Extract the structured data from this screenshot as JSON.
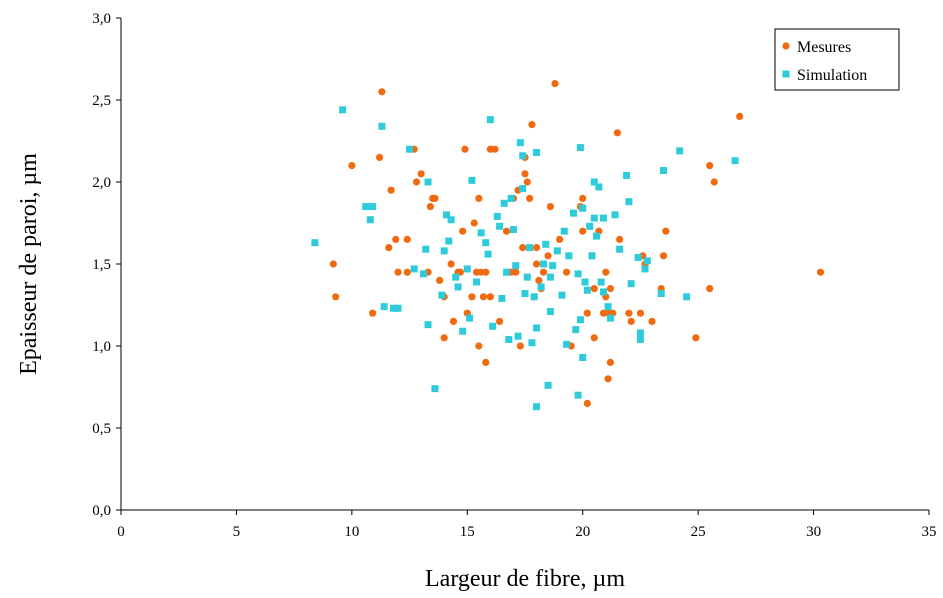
{
  "chart_data": {
    "type": "scatter",
    "title": "",
    "xlabel": "Largeur de fibre, µm",
    "ylabel": "Epaisseur de paroi, µm",
    "xlim": [
      0,
      35
    ],
    "ylim": [
      0,
      3
    ],
    "x_ticks": [
      0,
      5,
      10,
      15,
      20,
      25,
      30,
      35
    ],
    "x_tick_labels": [
      "0",
      "5",
      "10",
      "15",
      "20",
      "25",
      "30",
      "35"
    ],
    "y_ticks": [
      0,
      0.5,
      1,
      1.5,
      2,
      2.5,
      3
    ],
    "y_tick_labels": [
      "0,0",
      "0,5",
      "1,0",
      "1,5",
      "2,0",
      "2,5",
      "3,0"
    ],
    "grid": false,
    "legend_position": "top-right",
    "series": [
      {
        "name": "Mesures",
        "marker": "circle",
        "color": "#F26A10",
        "points": [
          [
            9.2,
            1.5
          ],
          [
            9.3,
            1.3
          ],
          [
            10.0,
            2.1
          ],
          [
            10.9,
            1.2
          ],
          [
            11.2,
            2.15
          ],
          [
            11.3,
            2.55
          ],
          [
            11.6,
            1.6
          ],
          [
            11.7,
            1.95
          ],
          [
            11.9,
            1.65
          ],
          [
            12.0,
            1.45
          ],
          [
            12.4,
            1.65
          ],
          [
            12.4,
            1.45
          ],
          [
            12.7,
            2.2
          ],
          [
            12.8,
            2.0
          ],
          [
            13.0,
            2.05
          ],
          [
            13.3,
            1.45
          ],
          [
            13.4,
            1.85
          ],
          [
            13.5,
            1.9
          ],
          [
            13.6,
            1.9
          ],
          [
            13.8,
            1.4
          ],
          [
            14.0,
            1.3
          ],
          [
            14.0,
            1.05
          ],
          [
            14.3,
            1.5
          ],
          [
            14.4,
            1.15
          ],
          [
            14.6,
            1.45
          ],
          [
            14.7,
            1.45
          ],
          [
            14.8,
            1.7
          ],
          [
            14.9,
            2.2
          ],
          [
            15.0,
            1.2
          ],
          [
            15.2,
            1.3
          ],
          [
            15.3,
            1.75
          ],
          [
            15.4,
            1.45
          ],
          [
            15.5,
            1.0
          ],
          [
            15.5,
            1.9
          ],
          [
            15.6,
            1.45
          ],
          [
            15.7,
            1.3
          ],
          [
            15.8,
            1.45
          ],
          [
            15.8,
            0.9
          ],
          [
            16.0,
            2.2
          ],
          [
            16.0,
            1.3
          ],
          [
            16.2,
            2.2
          ],
          [
            16.4,
            1.15
          ],
          [
            16.7,
            1.7
          ],
          [
            16.9,
            1.45
          ],
          [
            17.0,
            1.9
          ],
          [
            17.1,
            1.45
          ],
          [
            17.2,
            1.95
          ],
          [
            17.3,
            1.0
          ],
          [
            17.4,
            1.6
          ],
          [
            17.5,
            2.05
          ],
          [
            17.5,
            2.15
          ],
          [
            17.6,
            2.0
          ],
          [
            17.7,
            1.9
          ],
          [
            17.8,
            2.35
          ],
          [
            17.9,
            1.3
          ],
          [
            18.0,
            1.5
          ],
          [
            18.0,
            1.6
          ],
          [
            18.1,
            1.4
          ],
          [
            18.2,
            1.35
          ],
          [
            18.3,
            1.45
          ],
          [
            18.5,
            1.55
          ],
          [
            18.6,
            1.85
          ],
          [
            18.8,
            2.6
          ],
          [
            19.0,
            1.65
          ],
          [
            19.3,
            1.45
          ],
          [
            19.5,
            1.0
          ],
          [
            19.9,
            1.85
          ],
          [
            20.0,
            1.9
          ],
          [
            20.0,
            1.7
          ],
          [
            20.2,
            0.65
          ],
          [
            20.2,
            1.2
          ],
          [
            20.5,
            1.35
          ],
          [
            20.5,
            1.05
          ],
          [
            20.7,
            1.7
          ],
          [
            20.9,
            1.2
          ],
          [
            21.0,
            1.45
          ],
          [
            21.0,
            1.3
          ],
          [
            21.1,
            0.8
          ],
          [
            21.1,
            1.2
          ],
          [
            21.2,
            1.35
          ],
          [
            21.2,
            0.9
          ],
          [
            21.3,
            1.2
          ],
          [
            21.5,
            2.3
          ],
          [
            21.6,
            1.65
          ],
          [
            22.0,
            1.2
          ],
          [
            22.1,
            1.15
          ],
          [
            22.5,
            1.2
          ],
          [
            22.6,
            1.55
          ],
          [
            22.7,
            1.5
          ],
          [
            23.0,
            1.15
          ],
          [
            23.4,
            1.35
          ],
          [
            23.5,
            1.55
          ],
          [
            23.6,
            1.7
          ],
          [
            24.9,
            1.05
          ],
          [
            25.5,
            1.35
          ],
          [
            25.5,
            2.1
          ],
          [
            25.7,
            2.0
          ],
          [
            26.8,
            2.4
          ],
          [
            30.3,
            1.45
          ]
        ]
      },
      {
        "name": "Simulation",
        "marker": "square",
        "color": "#2ECCDA",
        "points": [
          [
            8.4,
            1.63
          ],
          [
            9.6,
            2.44
          ],
          [
            10.6,
            1.85
          ],
          [
            10.8,
            1.77
          ],
          [
            10.9,
            1.85
          ],
          [
            11.3,
            2.34
          ],
          [
            11.4,
            1.24
          ],
          [
            11.8,
            1.23
          ],
          [
            12.0,
            1.23
          ],
          [
            12.5,
            2.2
          ],
          [
            12.7,
            1.47
          ],
          [
            13.1,
            1.44
          ],
          [
            13.2,
            1.59
          ],
          [
            13.3,
            2.0
          ],
          [
            13.3,
            1.13
          ],
          [
            13.6,
            0.74
          ],
          [
            13.9,
            1.31
          ],
          [
            14.0,
            1.58
          ],
          [
            14.1,
            1.8
          ],
          [
            14.2,
            1.64
          ],
          [
            14.3,
            1.77
          ],
          [
            14.5,
            1.42
          ],
          [
            14.6,
            1.36
          ],
          [
            14.8,
            1.09
          ],
          [
            15.0,
            1.47
          ],
          [
            15.1,
            1.17
          ],
          [
            15.2,
            2.01
          ],
          [
            15.4,
            1.39
          ],
          [
            15.6,
            1.69
          ],
          [
            15.8,
            1.63
          ],
          [
            15.9,
            1.56
          ],
          [
            16.0,
            2.38
          ],
          [
            16.1,
            1.12
          ],
          [
            16.3,
            1.79
          ],
          [
            16.4,
            1.73
          ],
          [
            16.5,
            1.29
          ],
          [
            16.6,
            1.87
          ],
          [
            16.7,
            1.45
          ],
          [
            16.8,
            1.04
          ],
          [
            16.9,
            1.9
          ],
          [
            17.0,
            1.71
          ],
          [
            17.1,
            1.49
          ],
          [
            17.2,
            1.06
          ],
          [
            17.3,
            2.24
          ],
          [
            17.4,
            2.16
          ],
          [
            17.4,
            1.96
          ],
          [
            17.5,
            1.32
          ],
          [
            17.6,
            1.42
          ],
          [
            17.7,
            1.6
          ],
          [
            17.8,
            1.02
          ],
          [
            17.9,
            1.3
          ],
          [
            18.0,
            0.63
          ],
          [
            18.0,
            2.18
          ],
          [
            18.0,
            1.11
          ],
          [
            18.2,
            1.36
          ],
          [
            18.3,
            1.5
          ],
          [
            18.4,
            1.62
          ],
          [
            18.5,
            0.76
          ],
          [
            18.6,
            1.21
          ],
          [
            18.6,
            1.42
          ],
          [
            18.7,
            1.49
          ],
          [
            18.9,
            1.58
          ],
          [
            19.1,
            1.31
          ],
          [
            19.2,
            1.7
          ],
          [
            19.3,
            1.01
          ],
          [
            19.4,
            1.55
          ],
          [
            19.6,
            1.81
          ],
          [
            19.7,
            1.1
          ],
          [
            19.8,
            1.44
          ],
          [
            19.8,
            0.7
          ],
          [
            19.9,
            2.21
          ],
          [
            19.9,
            1.16
          ],
          [
            20.0,
            1.84
          ],
          [
            20.0,
            0.93
          ],
          [
            20.1,
            1.39
          ],
          [
            20.2,
            1.34
          ],
          [
            20.3,
            1.73
          ],
          [
            20.4,
            1.55
          ],
          [
            20.5,
            1.78
          ],
          [
            20.5,
            2.0
          ],
          [
            20.6,
            1.67
          ],
          [
            20.7,
            1.97
          ],
          [
            20.8,
            1.39
          ],
          [
            20.9,
            1.78
          ],
          [
            20.9,
            1.33
          ],
          [
            21.1,
            1.24
          ],
          [
            21.2,
            1.17
          ],
          [
            21.4,
            1.8
          ],
          [
            21.6,
            1.59
          ],
          [
            21.9,
            2.04
          ],
          [
            22.0,
            1.88
          ],
          [
            22.1,
            1.38
          ],
          [
            22.4,
            1.54
          ],
          [
            22.5,
            1.08
          ],
          [
            22.5,
            1.04
          ],
          [
            22.7,
            1.47
          ],
          [
            22.8,
            1.52
          ],
          [
            23.4,
            1.32
          ],
          [
            23.5,
            2.07
          ],
          [
            24.2,
            2.19
          ],
          [
            24.5,
            1.3
          ],
          [
            26.6,
            2.13
          ]
        ]
      }
    ]
  }
}
